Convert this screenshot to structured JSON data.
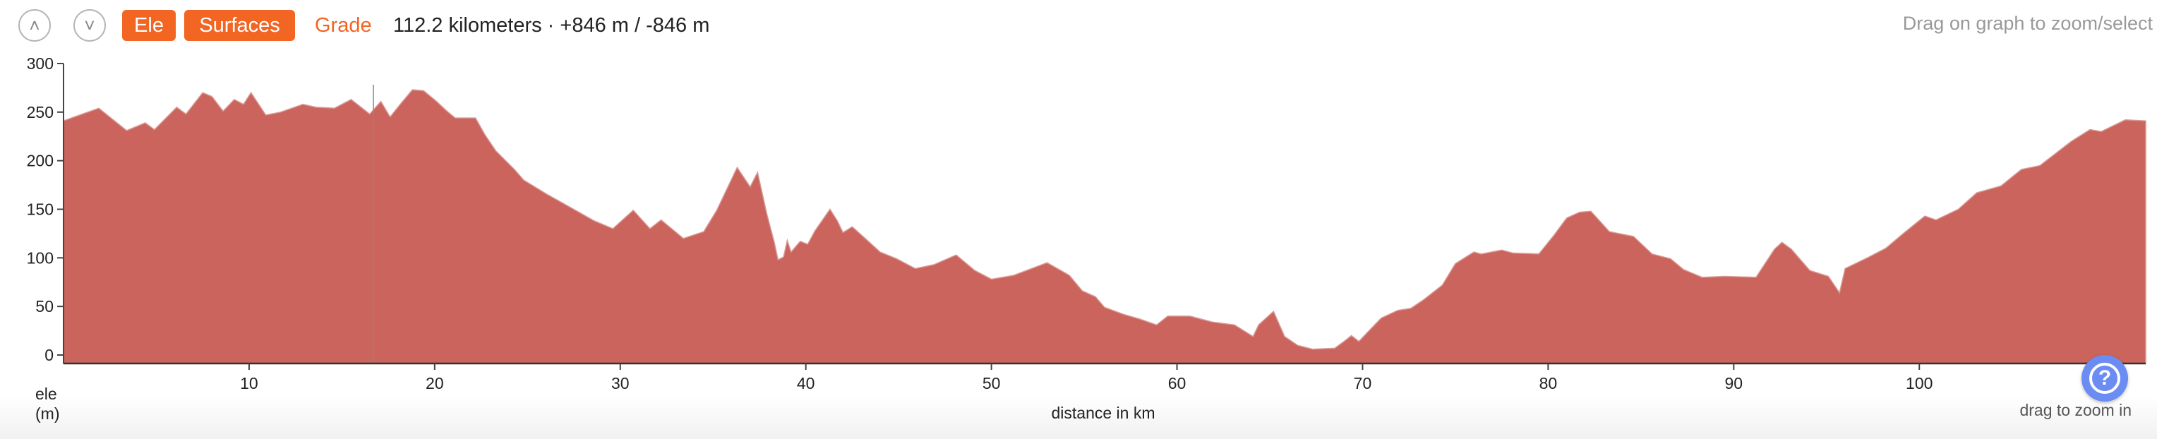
{
  "toolbar": {
    "up_icon": "chevron-up-icon",
    "down_icon": "chevron-down-icon",
    "up_glyph": "˄",
    "down_glyph": "˅",
    "ele_label": "Ele",
    "surfaces_label": "Surfaces",
    "grade_label": "Grade",
    "stats": "112.2 kilometers · +846 m / -846 m",
    "hint": "Drag on graph to zoom/select",
    "accent_color": "#f26522"
  },
  "help": {
    "icon": "question-circle-icon",
    "glyph": "?",
    "caption": "drag to zoom in",
    "color": "#6b8cf2"
  },
  "chart_data": {
    "type": "area",
    "xlabel": "distance in km",
    "ylabel_line1": "ele",
    "ylabel_line2": "(m)",
    "xlim": [
      0,
      112.2
    ],
    "ylim": [
      0,
      300
    ],
    "x_ticks": [
      10,
      20,
      30,
      40,
      50,
      60,
      70,
      80,
      90,
      100
    ],
    "x_tick_labels": [
      "10",
      "20",
      "30",
      "40",
      "50",
      "60",
      "70",
      "80",
      "90",
      "100"
    ],
    "y_ticks": [
      0,
      50,
      100,
      150,
      200,
      250,
      300
    ],
    "y_tick_labels": [
      "0",
      "50",
      "100",
      "150",
      "200",
      "250",
      "300"
    ],
    "grid": false,
    "fill_color": "#ca645d",
    "cursor_km": 16.7,
    "x": [
      0,
      1.9,
      3.4,
      4.4,
      4.9,
      6.1,
      6.6,
      7.5,
      8.0,
      8.6,
      9.2,
      9.7,
      10.1,
      10.9,
      11.7,
      12.9,
      13.6,
      14.6,
      15.5,
      16.5,
      17.1,
      17.6,
      18.1,
      18.8,
      19.4,
      20.1,
      20.6,
      21.1,
      22.2,
      22.7,
      23.3,
      24.3,
      24.8,
      26.0,
      27.4,
      28.6,
      29.6,
      30.7,
      31.6,
      32.2,
      33.4,
      34.5,
      35.2,
      36.3,
      37.0,
      37.4,
      37.9,
      38.3,
      38.5,
      38.8,
      39.0,
      39.2,
      39.7,
      40.1,
      40.5,
      41.3,
      41.7,
      42.0,
      42.5,
      43.2,
      44.0,
      44.9,
      45.9,
      46.9,
      48.1,
      49.1,
      50.0,
      51.2,
      53.0,
      54.2,
      54.9,
      55.6,
      56.1,
      57.1,
      58.0,
      58.9,
      59.5,
      60.7,
      61.9,
      63.1,
      64.1,
      64.4,
      65.2,
      65.8,
      66.5,
      67.3,
      68.5,
      69.0,
      69.4,
      69.8,
      70.2,
      71.0,
      71.9,
      72.6,
      73.3,
      74.3,
      75.0,
      76.0,
      76.4,
      77.5,
      78.1,
      79.5,
      80.3,
      81.0,
      81.7,
      82.3,
      83.3,
      84.6,
      85.6,
      86.6,
      87.3,
      88.3,
      89.5,
      91.2,
      92.2,
      92.6,
      93.1,
      94.1,
      95.1,
      95.7,
      96.0,
      97.3,
      98.2,
      99.2,
      100.3,
      100.9,
      102.1,
      103.1,
      104.4,
      105.5,
      106.5,
      108.2,
      109.2,
      109.8,
      111.1,
      112.2
    ],
    "y": [
      241,
      254,
      231,
      239,
      232,
      255,
      248,
      270,
      266,
      251,
      263,
      258,
      270,
      247,
      250,
      258,
      255,
      254,
      263,
      248,
      261,
      245,
      257,
      273,
      272,
      261,
      252,
      244,
      244,
      227,
      210,
      191,
      180,
      166,
      151,
      138,
      130,
      149,
      130,
      139,
      120,
      127,
      149,
      193,
      173,
      188,
      145,
      116,
      98,
      101,
      118,
      106,
      117,
      114,
      128,
      150,
      138,
      126,
      132,
      120,
      106,
      99,
      89,
      93,
      103,
      87,
      78,
      82,
      95,
      82,
      66,
      60,
      49,
      42,
      37,
      31,
      40,
      40,
      34,
      31,
      19,
      31,
      45,
      19,
      10,
      6,
      7,
      14,
      20,
      14,
      22,
      38,
      46,
      48,
      57,
      72,
      94,
      106,
      104,
      108,
      105,
      104,
      123,
      141,
      147,
      148,
      127,
      122,
      104,
      99,
      88,
      80,
      81,
      80,
      109,
      116,
      109,
      87,
      81,
      64,
      89,
      101,
      110,
      126,
      143,
      139,
      150,
      167,
      174,
      191,
      195,
      220,
      232,
      230,
      242,
      241
    ]
  }
}
